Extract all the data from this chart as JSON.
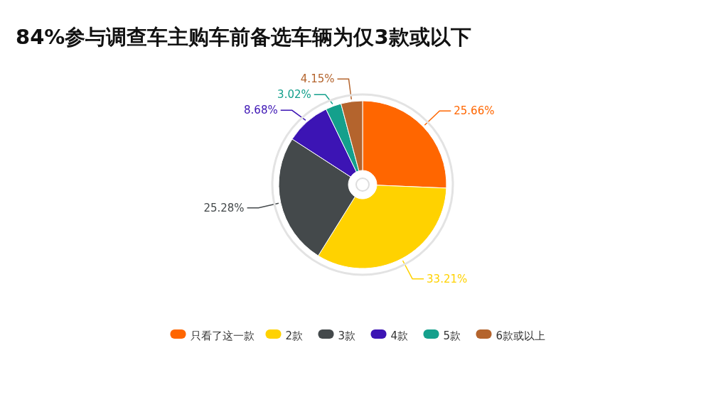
{
  "chart_data": {
    "type": "donut",
    "title": "84%参与调查车主购车前备选车辆为仅3款或以下",
    "categories": [
      "只看了这一款",
      "2款",
      "3款",
      "4款",
      "5款",
      "6款或以上"
    ],
    "values": [
      25.66,
      33.21,
      25.28,
      8.68,
      3.02,
      4.15
    ],
    "colors": [
      "#ff6600",
      "#ffd200",
      "#44494b",
      "#3c14b4",
      "#14a08c",
      "#b4642d"
    ],
    "value_labels": [
      "25.66%",
      "33.21%",
      "25.28%",
      "8.68%",
      "3.02%",
      "4.15%"
    ],
    "legend": "bottom"
  }
}
